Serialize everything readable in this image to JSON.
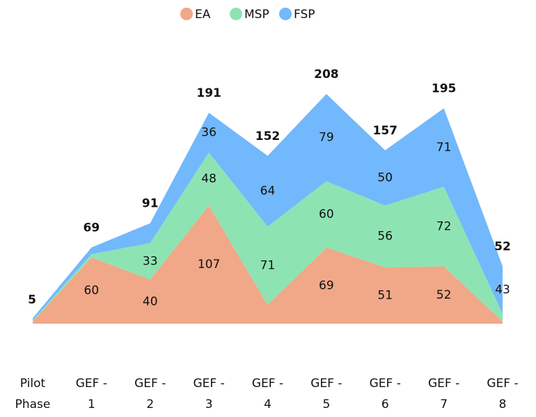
{
  "chart_data": {
    "type": "stacked-area",
    "categories": [
      "Pilot Phase",
      "GEF - 1",
      "GEF - 2",
      "GEF - 3",
      "GEF - 4",
      "GEF - 5",
      "GEF - 6",
      "GEF - 7",
      "GEF - 8"
    ],
    "series": [
      {
        "name": "EA",
        "color": "#f0a888",
        "values": [
          2,
          60,
          40,
          107,
          17,
          69,
          51,
          52,
          2
        ],
        "value_labels": [
          null,
          "60",
          "40",
          "107",
          null,
          "69",
          "51",
          "52",
          null
        ]
      },
      {
        "name": "MSP",
        "color": "#8ee3b3",
        "values": [
          1,
          3,
          33,
          48,
          71,
          60,
          56,
          72,
          7
        ],
        "value_labels": [
          null,
          null,
          "33",
          "48",
          "71",
          "60",
          "56",
          "72",
          null
        ]
      },
      {
        "name": "FSP",
        "color": "#72b8fc",
        "values": [
          2,
          6,
          18,
          36,
          64,
          79,
          50,
          71,
          43
        ],
        "value_labels": [
          null,
          null,
          null,
          "36",
          "64",
          "79",
          "50",
          "71",
          "43"
        ]
      }
    ],
    "totals": [
      5,
      69,
      91,
      191,
      152,
      208,
      157,
      195,
      52
    ],
    "legend": "top"
  }
}
